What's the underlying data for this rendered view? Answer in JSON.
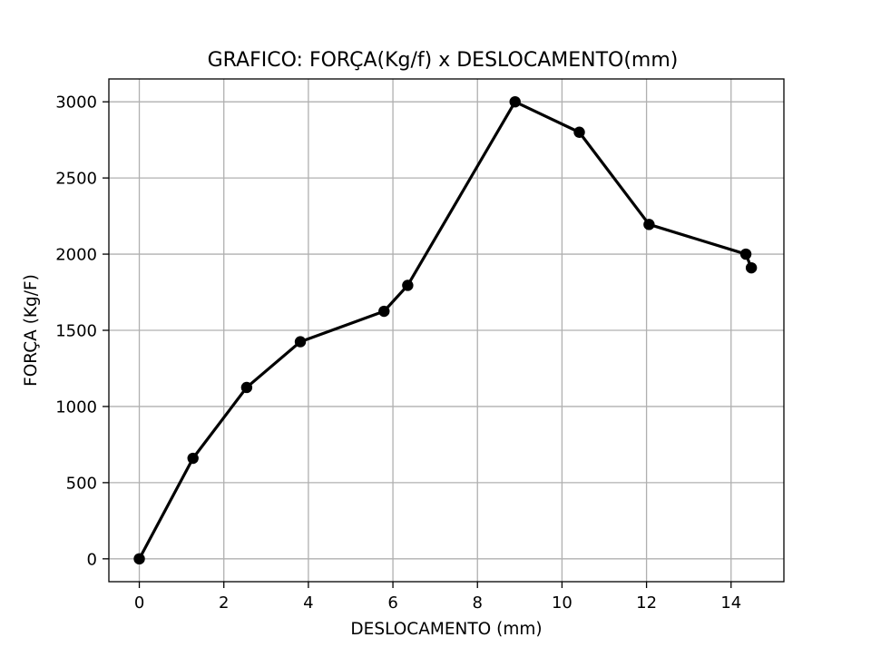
{
  "chart_data": {
    "type": "line",
    "title": "GRAFICO: FORÇA(Kg/f) x DESLOCAMENTO(mm)",
    "xlabel": "DESLOCAMENTO (mm)",
    "ylabel": "FORÇA (Kg/F)",
    "xlim": [
      -0.72,
      15.25
    ],
    "ylim": [
      -150,
      3150
    ],
    "xticks": [
      0,
      2,
      4,
      6,
      8,
      10,
      12,
      14
    ],
    "yticks": [
      0,
      500,
      1000,
      1500,
      2000,
      2500,
      3000
    ],
    "xtick_labels": [
      "0",
      "2",
      "4",
      "6",
      "8",
      "10",
      "12",
      "14"
    ],
    "ytick_labels": [
      "0",
      "500",
      "1000",
      "1500",
      "2000",
      "2500",
      "3000"
    ],
    "grid": true,
    "legend": "none",
    "color": "#000000",
    "marker": "circle",
    "series": [
      {
        "x": [
          0,
          1.27,
          2.54,
          3.81,
          5.79,
          6.35,
          8.89,
          10.41,
          12.06,
          14.35,
          14.48
        ],
        "y": [
          0,
          660,
          1125,
          1425,
          1625,
          1795,
          3000,
          2800,
          2195,
          2000,
          1910
        ]
      }
    ]
  }
}
